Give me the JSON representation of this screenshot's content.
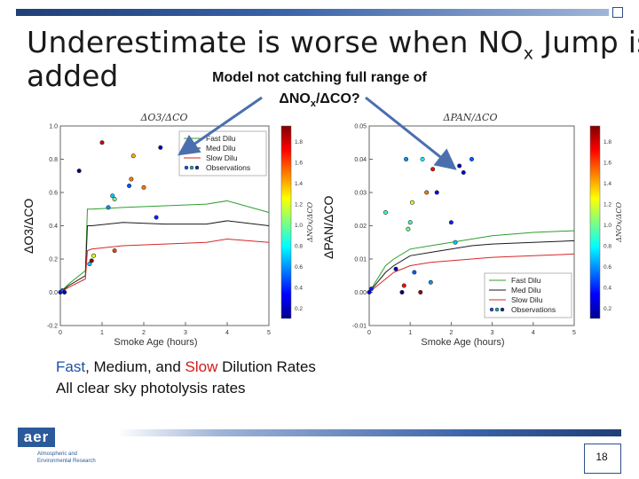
{
  "title": {
    "line1_prefix": "Underestimate is worse when NO",
    "line1_sub": "x",
    "line1_suffix": " Jump is",
    "line2": "added"
  },
  "callout": {
    "line1": "Model not catching full range of",
    "line2_a": "ΔNO",
    "line2_sub": "x",
    "line2_b": "/ΔCO?"
  },
  "footer": {
    "fast": "Fast",
    "sep1": ", Medium, and ",
    "slow": "Slow",
    "rest": " Dilution Rates",
    "line2": "All clear sky photolysis rates"
  },
  "logo": {
    "text": "aer",
    "sub1": "Atmospheric and",
    "sub2": "Environmental Research"
  },
  "page_number": "18",
  "colors": {
    "fast": "#2ca02c",
    "med": "#1a1a1a",
    "slow": "#d62728",
    "accent": "#2d4f8b"
  },
  "chart_data": [
    {
      "type": "scatter",
      "title": "ΔO3/ΔCO",
      "ylabel_outer": "ΔO3/ΔCO",
      "xlabel": "Smoke Age (hours)",
      "xlim": [
        0,
        5
      ],
      "ylim": [
        -0.2,
        1.0
      ],
      "xticks": [
        "0",
        "1",
        "2",
        "3",
        "4",
        "5"
      ],
      "yticks": [
        "-0.2",
        "0.0",
        "0.2",
        "0.4",
        "0.6",
        "0.8",
        "1.0"
      ],
      "legend": [
        "Fast Dilu",
        "Med Dilu",
        "Slow Dilu",
        "Observations"
      ],
      "series": [
        {
          "name": "Fast Dilu",
          "x": [
            0,
            0.2,
            0.6,
            0.65,
            0.75,
            1.5,
            2.5,
            3.5,
            4.0,
            5.0
          ],
          "y": [
            0.0,
            0.05,
            0.13,
            0.5,
            0.5,
            0.51,
            0.52,
            0.53,
            0.55,
            0.48
          ]
        },
        {
          "name": "Med Dilu",
          "x": [
            0,
            0.2,
            0.6,
            0.65,
            0.75,
            1.5,
            2.5,
            3.5,
            4.0,
            5.0
          ],
          "y": [
            0.0,
            0.04,
            0.1,
            0.4,
            0.4,
            0.42,
            0.41,
            0.41,
            0.43,
            0.4
          ]
        },
        {
          "name": "Slow Dilu",
          "x": [
            0,
            0.2,
            0.6,
            0.65,
            0.75,
            1.5,
            2.5,
            3.5,
            4.0,
            5.0
          ],
          "y": [
            0.0,
            0.03,
            0.08,
            0.25,
            0.26,
            0.28,
            0.29,
            0.3,
            0.32,
            0.3
          ]
        },
        {
          "name": "Observations",
          "x": [
            0.0,
            0.05,
            0.1,
            0.45,
            0.7,
            0.75,
            0.8,
            1.0,
            1.15,
            1.25,
            1.3,
            1.3,
            1.65,
            1.7,
            1.75,
            2.0,
            2.3,
            2.4
          ],
          "y": [
            0.0,
            0.01,
            0.0,
            0.73,
            0.17,
            0.19,
            0.22,
            0.9,
            0.51,
            0.58,
            0.56,
            0.25,
            0.64,
            0.68,
            0.82,
            0.63,
            0.45,
            0.87
          ],
          "c": [
            0.3,
            0.5,
            0.2,
            0.1,
            0.7,
            1.9,
            1.2,
            1.8,
            0.6,
            0.7,
            1.0,
            1.6,
            0.5,
            1.5,
            1.4,
            1.5,
            0.4,
            0.2
          ]
        }
      ],
      "colorbar": {
        "label": "ΔNOx/ΔCO",
        "ticks": [
          "0.2",
          "0.4",
          "0.6",
          "0.8",
          "1.0",
          "1.2",
          "1.4",
          "1.6",
          "1.8"
        ],
        "range": [
          0.1,
          1.95
        ]
      }
    },
    {
      "type": "scatter",
      "title": "ΔPAN/ΔCO",
      "ylabel_outer": "ΔPAN/ΔCO",
      "xlabel": "Smoke Age (hours)",
      "xlim": [
        0,
        5
      ],
      "ylim": [
        -0.01,
        0.05
      ],
      "xticks": [
        "0",
        "1",
        "2",
        "3",
        "4",
        "5"
      ],
      "yticks": [
        "-0.01",
        "0.00",
        "0.01",
        "0.02",
        "0.03",
        "0.04",
        "0.05"
      ],
      "legend": [
        "Fast Dilu",
        "Med Dilu",
        "Slow Dilu",
        "Observations"
      ],
      "series": [
        {
          "name": "Fast Dilu",
          "x": [
            0,
            0.2,
            0.4,
            0.6,
            1.0,
            1.5,
            2.0,
            2.5,
            3.0,
            4.0,
            5.0
          ],
          "y": [
            0.0,
            0.004,
            0.008,
            0.01,
            0.013,
            0.014,
            0.015,
            0.016,
            0.017,
            0.018,
            0.0185
          ]
        },
        {
          "name": "Med Dilu",
          "x": [
            0,
            0.2,
            0.4,
            0.6,
            1.0,
            1.5,
            2.0,
            2.5,
            3.0,
            4.0,
            5.0
          ],
          "y": [
            0.0,
            0.003,
            0.006,
            0.008,
            0.011,
            0.012,
            0.013,
            0.014,
            0.0145,
            0.015,
            0.0155
          ]
        },
        {
          "name": "Slow Dilu",
          "x": [
            0,
            0.2,
            0.4,
            0.6,
            1.0,
            1.5,
            2.0,
            2.5,
            3.0,
            4.0,
            5.0
          ],
          "y": [
            0.0,
            0.002,
            0.004,
            0.006,
            0.008,
            0.009,
            0.0095,
            0.01,
            0.0105,
            0.011,
            0.0115
          ]
        },
        {
          "name": "Observations",
          "x": [
            0.0,
            0.05,
            0.4,
            0.65,
            0.8,
            0.85,
            0.9,
            0.95,
            1.0,
            1.05,
            1.1,
            1.25,
            1.3,
            1.4,
            1.5,
            1.55,
            1.65,
            2.0,
            2.1,
            2.2,
            2.3,
            2.5
          ],
          "y": [
            0.0,
            0.001,
            0.024,
            0.007,
            0.0,
            0.002,
            0.04,
            0.019,
            0.021,
            0.027,
            0.006,
            0.0,
            0.04,
            0.03,
            0.003,
            0.037,
            0.03,
            0.021,
            0.015,
            0.038,
            0.036,
            0.04
          ],
          "c": [
            0.3,
            0.4,
            0.9,
            0.2,
            0.1,
            1.7,
            0.6,
            1.0,
            0.9,
            1.2,
            0.5,
            1.9,
            0.8,
            1.5,
            0.6,
            1.7,
            0.3,
            0.4,
            0.7,
            0.2,
            0.3,
            0.5
          ]
        }
      ],
      "colorbar": {
        "label": "ΔNOx/ΔCO",
        "ticks": [
          "0.2",
          "0.4",
          "0.6",
          "0.8",
          "1.0",
          "1.2",
          "1.4",
          "1.6",
          "1.8"
        ],
        "range": [
          0.1,
          1.95
        ]
      }
    }
  ]
}
